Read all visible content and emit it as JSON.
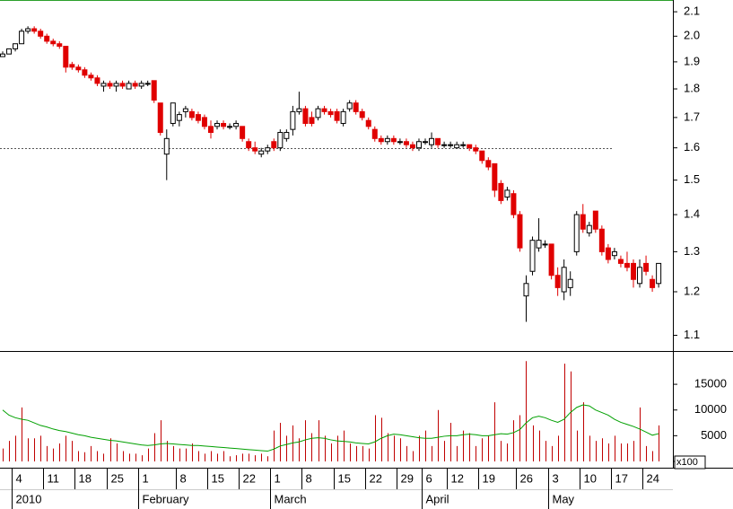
{
  "chart_data": [
    {
      "type": "candlestick",
      "log_scale": true,
      "ylim": [
        1.066,
        2.15
      ],
      "yticks": [
        1.1,
        1.2,
        1.3,
        1.4,
        1.5,
        1.6,
        1.7,
        1.8,
        1.9,
        {
          "value": 2,
          "label": "2.0"
        },
        2.1
      ],
      "reference_line": 1.6,
      "up_color": "#ffffff",
      "down_color": "#e00000",
      "categories": [
        null,
        null,
        "4",
        null,
        null,
        null,
        null,
        "11",
        null,
        null,
        null,
        null,
        "18",
        null,
        null,
        null,
        null,
        "25",
        null,
        null,
        null,
        null,
        "1",
        null,
        null,
        null,
        null,
        null,
        "8",
        null,
        null,
        null,
        null,
        "15",
        null,
        null,
        null,
        null,
        "22",
        null,
        null,
        null,
        null,
        "1",
        null,
        null,
        null,
        null,
        "8",
        null,
        null,
        null,
        null,
        "15",
        null,
        null,
        null,
        null,
        "22",
        null,
        null,
        null,
        null,
        "29",
        null,
        null,
        null,
        "6",
        null,
        null,
        null,
        "12",
        null,
        null,
        null,
        null,
        "19",
        null,
        null,
        null,
        null,
        null,
        "26",
        null,
        null,
        null,
        null,
        "3",
        null,
        null,
        null,
        null,
        "10",
        null,
        null,
        null,
        null,
        "17",
        null,
        null,
        null,
        null,
        "24",
        null,
        null
      ],
      "month_labels": [
        null,
        null,
        "2010",
        null,
        null,
        null,
        null,
        null,
        null,
        null,
        null,
        null,
        null,
        null,
        null,
        null,
        null,
        null,
        null,
        null,
        null,
        null,
        "February",
        null,
        null,
        null,
        null,
        null,
        null,
        null,
        null,
        null,
        null,
        null,
        null,
        null,
        null,
        null,
        null,
        null,
        null,
        null,
        null,
        "March",
        null,
        null,
        null,
        null,
        null,
        null,
        null,
        null,
        null,
        null,
        null,
        null,
        null,
        null,
        null,
        null,
        null,
        null,
        null,
        null,
        null,
        null,
        null,
        "April",
        null,
        null,
        null,
        null,
        null,
        null,
        null,
        null,
        null,
        null,
        null,
        null,
        null,
        null,
        null,
        null,
        null,
        null,
        null,
        "May",
        null,
        null,
        null,
        null,
        null,
        null,
        null,
        null,
        null,
        null,
        null,
        null,
        null,
        null,
        null,
        null,
        null
      ],
      "ohlc": [
        [
          1.92,
          1.94,
          1.92,
          1.93
        ],
        [
          1.93,
          1.95,
          1.93,
          1.95
        ],
        [
          1.95,
          1.97,
          1.94,
          1.97
        ],
        [
          1.97,
          2.03,
          1.97,
          2.02
        ],
        [
          2.02,
          2.04,
          2.01,
          2.03
        ],
        [
          2.03,
          2.04,
          2.01,
          2.02
        ],
        [
          2.02,
          2.03,
          1.99,
          2.0
        ],
        [
          2.0,
          2.01,
          1.97,
          1.98
        ],
        [
          1.98,
          1.99,
          1.96,
          1.97
        ],
        [
          1.97,
          1.98,
          1.95,
          1.96
        ],
        [
          1.96,
          1.96,
          1.86,
          1.88
        ],
        [
          1.89,
          1.9,
          1.87,
          1.88
        ],
        [
          1.88,
          1.89,
          1.86,
          1.87
        ],
        [
          1.87,
          1.88,
          1.84,
          1.85
        ],
        [
          1.85,
          1.86,
          1.83,
          1.84
        ],
        [
          1.84,
          1.85,
          1.81,
          1.82
        ],
        [
          1.81,
          1.83,
          1.79,
          1.82
        ],
        [
          1.82,
          1.83,
          1.8,
          1.81
        ],
        [
          1.81,
          1.83,
          1.79,
          1.82
        ],
        [
          1.82,
          1.83,
          1.8,
          1.81
        ],
        [
          1.8,
          1.83,
          1.8,
          1.82
        ],
        [
          1.82,
          1.83,
          1.8,
          1.81
        ],
        [
          1.81,
          1.83,
          1.8,
          1.82
        ],
        [
          1.82,
          1.83,
          1.81,
          1.82
        ],
        [
          1.83,
          1.83,
          1.75,
          1.76
        ],
        [
          1.75,
          1.75,
          1.64,
          1.65
        ],
        [
          1.58,
          1.66,
          1.5,
          1.63
        ],
        [
          1.68,
          1.75,
          1.67,
          1.75
        ],
        [
          1.69,
          1.72,
          1.67,
          1.71
        ],
        [
          1.72,
          1.74,
          1.7,
          1.73
        ],
        [
          1.72,
          1.73,
          1.69,
          1.7
        ],
        [
          1.71,
          1.72,
          1.68,
          1.69
        ],
        [
          1.7,
          1.71,
          1.66,
          1.67
        ],
        [
          1.67,
          1.69,
          1.63,
          1.65
        ],
        [
          1.67,
          1.69,
          1.66,
          1.68
        ],
        [
          1.68,
          1.69,
          1.66,
          1.67
        ],
        [
          1.67,
          1.68,
          1.66,
          1.67
        ],
        [
          1.67,
          1.69,
          1.66,
          1.68
        ],
        [
          1.67,
          1.67,
          1.62,
          1.63
        ],
        [
          1.62,
          1.63,
          1.59,
          1.6
        ],
        [
          1.6,
          1.62,
          1.58,
          1.59
        ],
        [
          1.58,
          1.6,
          1.57,
          1.59
        ],
        [
          1.59,
          1.61,
          1.58,
          1.6
        ],
        [
          1.62,
          1.63,
          1.59,
          1.6
        ],
        [
          1.6,
          1.66,
          1.59,
          1.65
        ],
        [
          1.63,
          1.66,
          1.62,
          1.65
        ],
        [
          1.66,
          1.74,
          1.64,
          1.72
        ],
        [
          1.72,
          1.79,
          1.71,
          1.73
        ],
        [
          1.73,
          1.74,
          1.67,
          1.68
        ],
        [
          1.7,
          1.72,
          1.67,
          1.68
        ],
        [
          1.7,
          1.74,
          1.69,
          1.73
        ],
        [
          1.73,
          1.74,
          1.71,
          1.72
        ],
        [
          1.72,
          1.73,
          1.7,
          1.71
        ],
        [
          1.72,
          1.73,
          1.68,
          1.69
        ],
        [
          1.68,
          1.73,
          1.67,
          1.72
        ],
        [
          1.73,
          1.76,
          1.72,
          1.75
        ],
        [
          1.75,
          1.76,
          1.71,
          1.72
        ],
        [
          1.72,
          1.73,
          1.69,
          1.7
        ],
        [
          1.69,
          1.7,
          1.66,
          1.67
        ],
        [
          1.66,
          1.67,
          1.62,
          1.63
        ],
        [
          1.63,
          1.64,
          1.61,
          1.62
        ],
        [
          1.62,
          1.64,
          1.61,
          1.63
        ],
        [
          1.63,
          1.64,
          1.61,
          1.62
        ],
        [
          1.62,
          1.63,
          1.61,
          1.62
        ],
        [
          1.62,
          1.63,
          1.6,
          1.61
        ],
        [
          1.61,
          1.62,
          1.59,
          1.6
        ],
        [
          1.6,
          1.63,
          1.59,
          1.62
        ],
        [
          1.62,
          1.63,
          1.61,
          1.62
        ],
        [
          1.61,
          1.65,
          1.6,
          1.63
        ],
        [
          1.63,
          1.63,
          1.6,
          1.61
        ],
        [
          1.61,
          1.62,
          1.6,
          1.61
        ],
        [
          1.61,
          1.62,
          1.6,
          1.61
        ],
        [
          1.6,
          1.62,
          1.6,
          1.61
        ],
        [
          1.61,
          1.62,
          1.6,
          1.61
        ],
        [
          1.61,
          1.61,
          1.59,
          1.6
        ],
        [
          1.6,
          1.61,
          1.58,
          1.59
        ],
        [
          1.59,
          1.59,
          1.55,
          1.56
        ],
        [
          1.56,
          1.57,
          1.53,
          1.54
        ],
        [
          1.55,
          1.55,
          1.45,
          1.47
        ],
        [
          1.49,
          1.5,
          1.43,
          1.44
        ],
        [
          1.45,
          1.48,
          1.44,
          1.47
        ],
        [
          1.46,
          1.47,
          1.39,
          1.4
        ],
        [
          1.4,
          1.41,
          1.3,
          1.31
        ],
        [
          1.19,
          1.24,
          1.13,
          1.22
        ],
        [
          1.25,
          1.34,
          1.24,
          1.33
        ],
        [
          1.31,
          1.39,
          1.3,
          1.33
        ],
        [
          1.32,
          1.33,
          1.31,
          1.32
        ],
        [
          1.32,
          1.32,
          1.23,
          1.24
        ],
        [
          1.24,
          1.26,
          1.19,
          1.21
        ],
        [
          1.2,
          1.28,
          1.18,
          1.26
        ],
        [
          1.21,
          1.25,
          1.19,
          1.23
        ],
        [
          1.3,
          1.41,
          1.29,
          1.4
        ],
        [
          1.4,
          1.43,
          1.35,
          1.36
        ],
        [
          1.35,
          1.38,
          1.34,
          1.37
        ],
        [
          1.41,
          1.41,
          1.35,
          1.36
        ],
        [
          1.36,
          1.37,
          1.29,
          1.3
        ],
        [
          1.31,
          1.32,
          1.27,
          1.28
        ],
        [
          1.29,
          1.31,
          1.28,
          1.3
        ],
        [
          1.28,
          1.29,
          1.26,
          1.27
        ],
        [
          1.27,
          1.3,
          1.25,
          1.26
        ],
        [
          1.27,
          1.28,
          1.21,
          1.23
        ],
        [
          1.22,
          1.28,
          1.21,
          1.26
        ],
        [
          1.27,
          1.29,
          1.24,
          1.25
        ],
        [
          1.23,
          1.24,
          1.2,
          1.21
        ],
        [
          1.22,
          1.27,
          1.21,
          1.27
        ]
      ]
    },
    {
      "type": "bar",
      "color": "#c00000",
      "ylim": [
        0,
        21300
      ],
      "yticks": [
        0,
        5000,
        10000,
        15000
      ],
      "unit_label": "x100",
      "values": [
        2500,
        4000,
        5000,
        10500,
        4500,
        4500,
        5000,
        3000,
        2500,
        3500,
        5000,
        4000,
        2000,
        1800,
        3000,
        2000,
        1500,
        4500,
        3500,
        2000,
        1500,
        1500,
        1200,
        2500,
        5500,
        8000,
        4000,
        3000,
        2500,
        2500,
        3500,
        2000,
        1500,
        2000,
        1500,
        2000,
        1000,
        1200,
        1500,
        1500,
        1200,
        1500,
        1000,
        6000,
        7500,
        5000,
        7000,
        4500,
        8000,
        5500,
        8000,
        5000,
        3500,
        5000,
        6000,
        3500,
        3000,
        3000,
        2500,
        9000,
        8500,
        5500,
        5000,
        4500,
        3000,
        2000,
        5000,
        6000,
        3000,
        10000,
        4000,
        7500,
        3000,
        6000,
        5500,
        3000,
        4500,
        5000,
        11500,
        4000,
        3500,
        8000,
        9000,
        19500,
        7000,
        6000,
        4000,
        3000,
        5000,
        19000,
        17500,
        6000,
        11500,
        5000,
        4000,
        4500,
        3500,
        5000,
        3500,
        3500,
        4000,
        10500,
        3000,
        2000,
        7000
      ],
      "moving_average": {
        "color": "#00a000",
        "values": [
          10000,
          9000,
          8500,
          8200,
          8000,
          7500,
          7000,
          6700,
          6300,
          6000,
          5800,
          5500,
          5200,
          5000,
          4700,
          4500,
          4300,
          4100,
          4000,
          3800,
          3600,
          3400,
          3200,
          3100,
          3200,
          3400,
          3500,
          3400,
          3300,
          3200,
          3100,
          3100,
          3000,
          2900,
          2800,
          2700,
          2600,
          2500,
          2400,
          2300,
          2200,
          2100,
          2000,
          2400,
          3000,
          3300,
          3600,
          3800,
          4200,
          4500,
          4600,
          4500,
          4200,
          4000,
          3900,
          3800,
          3600,
          3500,
          3400,
          3800,
          4500,
          5000,
          5300,
          5200,
          5000,
          4800,
          4600,
          4500,
          4500,
          4700,
          4900,
          5000,
          5000,
          5200,
          5300,
          5200,
          5000,
          5000,
          5200,
          5400,
          5300,
          5600,
          6200,
          7500,
          8500,
          8800,
          8500,
          8000,
          7600,
          8200,
          9500,
          10500,
          11000,
          10800,
          10000,
          9500,
          9000,
          8200,
          7600,
          7200,
          6800,
          6300,
          5700,
          5100,
          5400
        ]
      }
    }
  ]
}
